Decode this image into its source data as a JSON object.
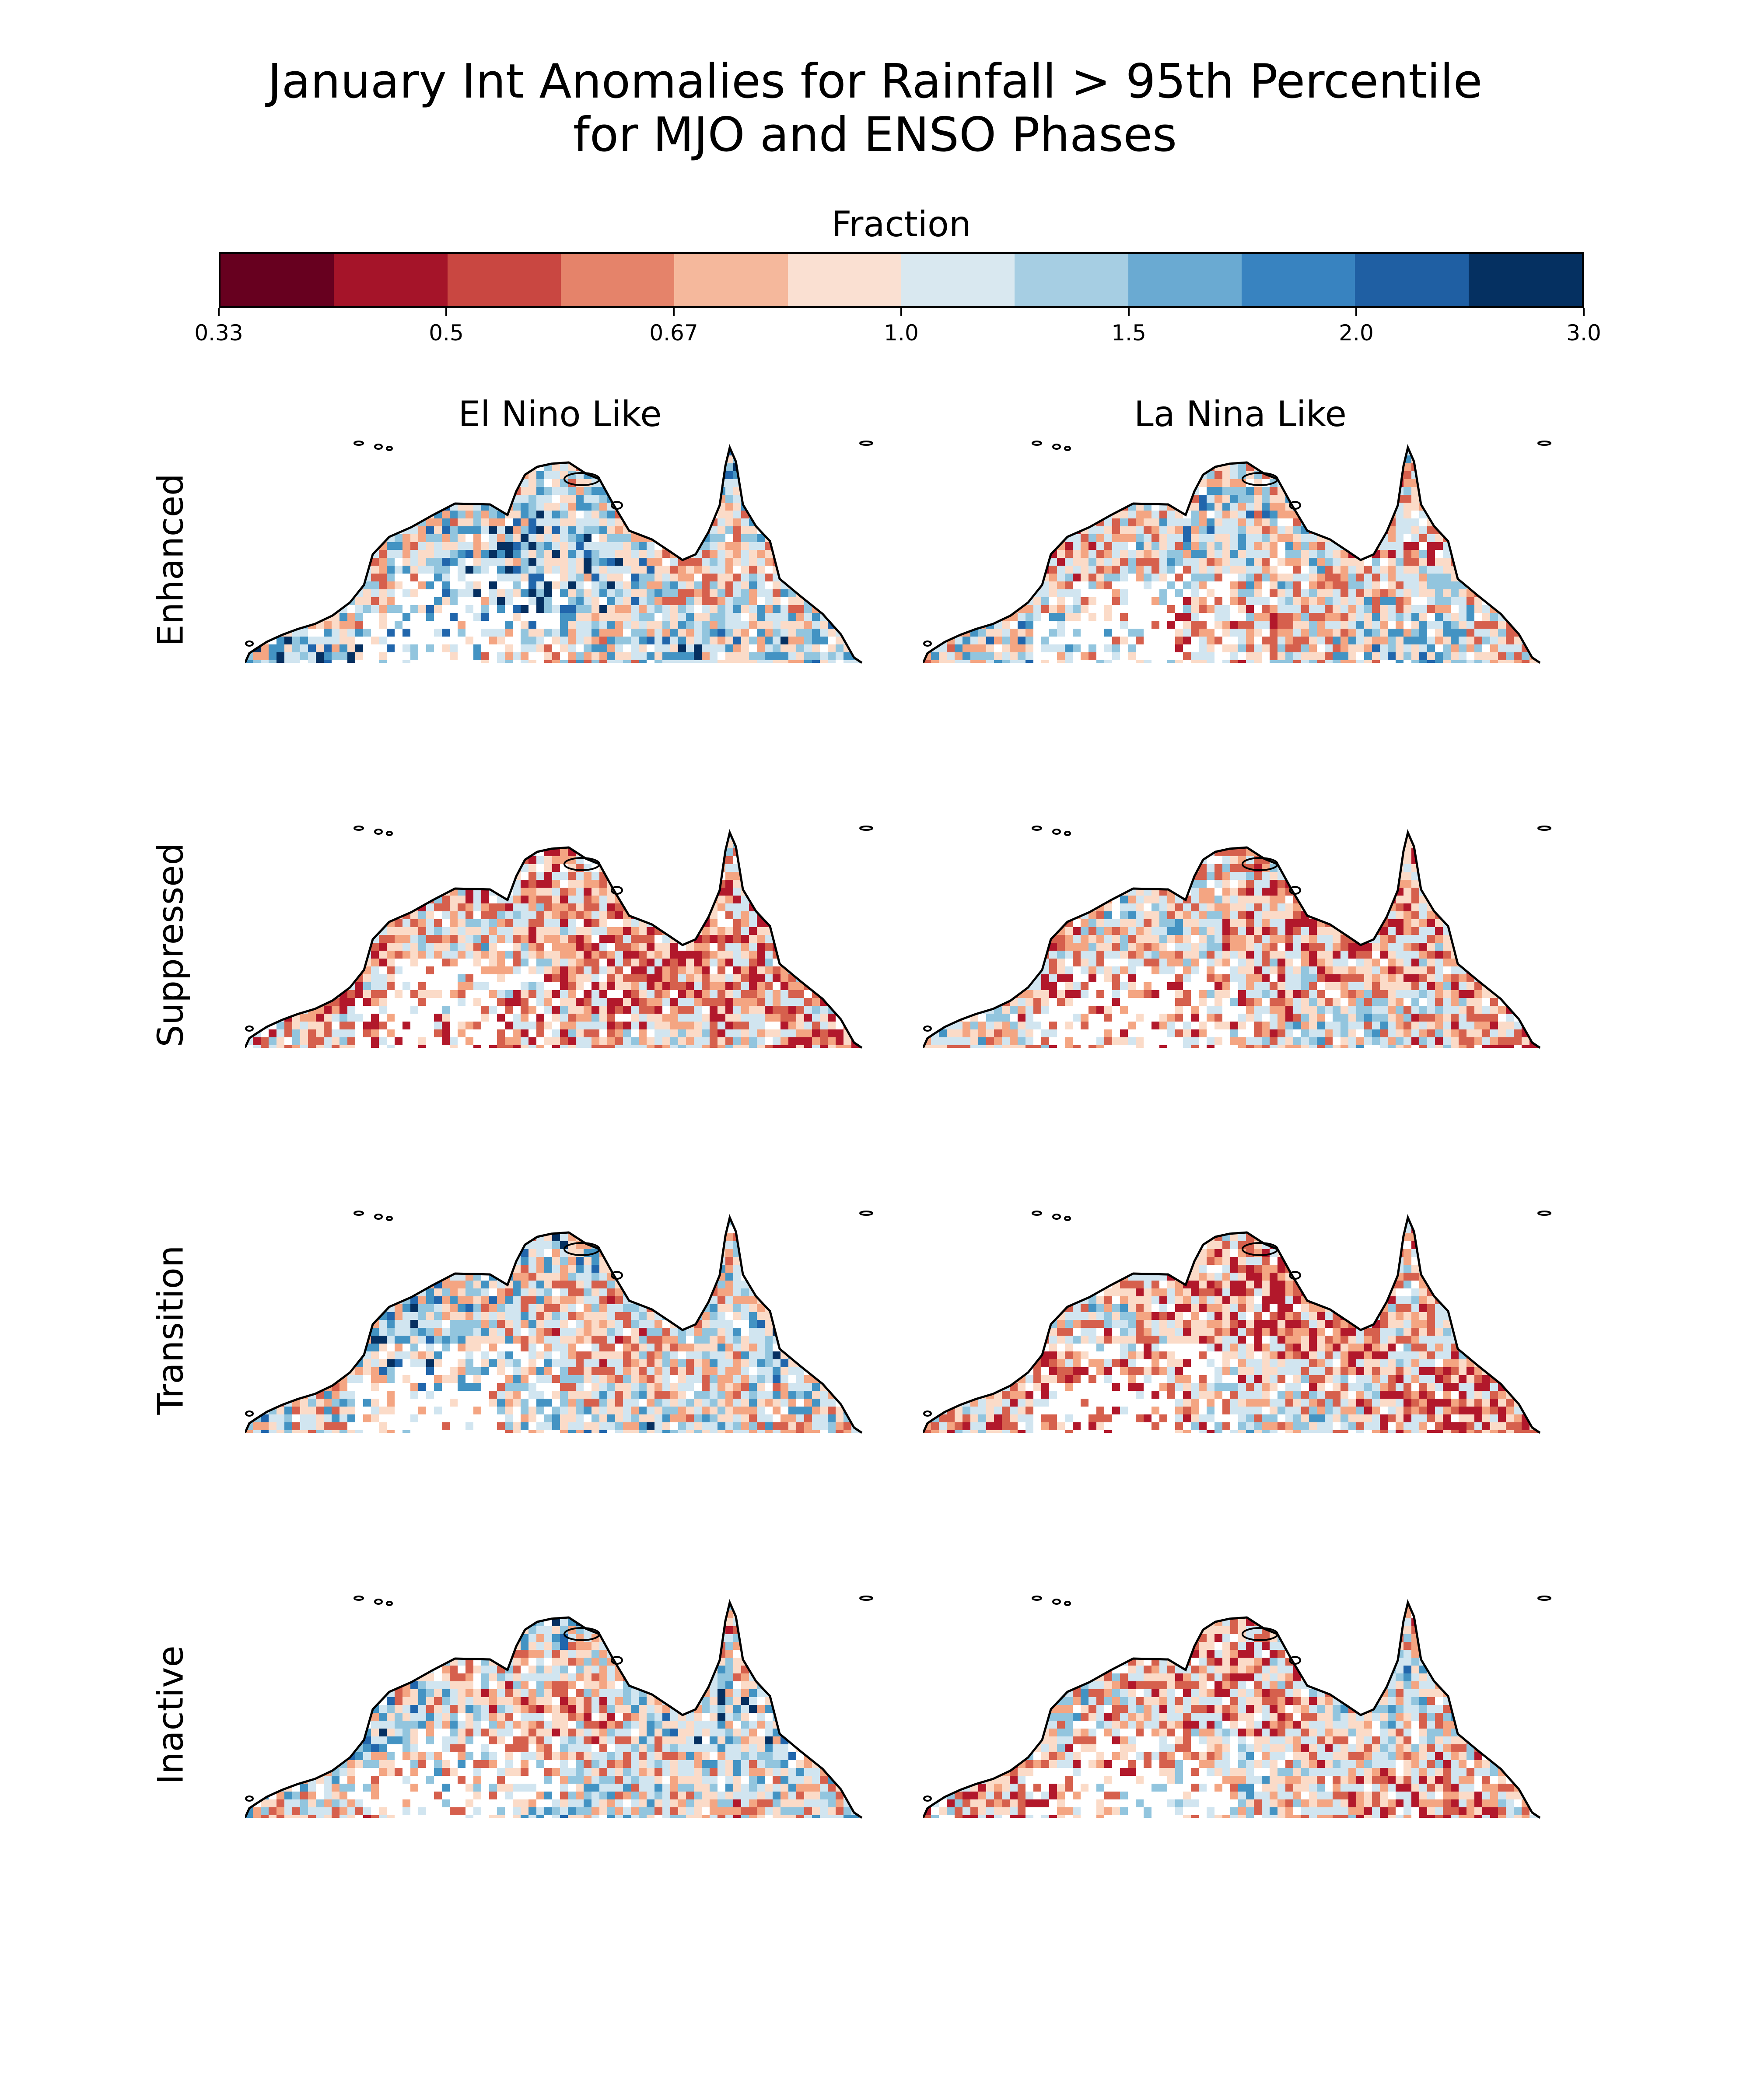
{
  "title": {
    "line1": "January Int Anomalies for Rainfall > 95th Percentile",
    "line2": "for MJO and ENSO Phases"
  },
  "colorbar": {
    "label": "Fraction",
    "tick_labels": [
      "0.33",
      "0.5",
      "0.67",
      "1.0",
      "1.5",
      "2.0",
      "3.0"
    ],
    "colors": [
      "#67001f",
      "#a51429",
      "#c94741",
      "#e5836a",
      "#f5b89c",
      "#fae0d2",
      "#d9e8f0",
      "#a6cee3",
      "#6aaad2",
      "#3883c0",
      "#1f5fa3",
      "#053061"
    ]
  },
  "columns": [
    "El Nino Like",
    "La Nina Like"
  ],
  "rows": [
    "Enhanced",
    "Suppressed",
    "Transition",
    "Inactive"
  ],
  "map_colors": {
    "coastline": "#000000",
    "red_dark": "#b2182b",
    "red_mid": "#d6604d",
    "red_light": "#f4a582",
    "red_pale": "#fbdbc8",
    "blue_pale": "#d1e5f0",
    "blue_light": "#92c5de",
    "blue_mid": "#4393c3",
    "blue_dark": "#2166ac",
    "blue_deep": "#053061"
  }
}
